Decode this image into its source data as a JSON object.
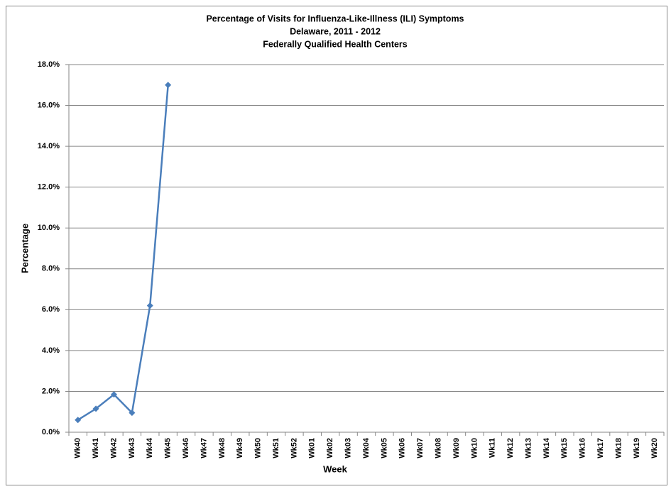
{
  "chart_data": {
    "type": "line",
    "title": [
      "Percentage of Visits for Influenza-Like-Illness (ILI) Symptoms",
      "Delaware, 2011 - 2012",
      "Federally Qualified Health Centers"
    ],
    "x_label": "Week",
    "y_label": "Percentage",
    "categories": [
      "Wk40",
      "Wk41",
      "Wk42",
      "Wk43",
      "Wk44",
      "Wk45",
      "Wk46",
      "Wk47",
      "Wk48",
      "Wk49",
      "Wk50",
      "Wk51",
      "Wk52",
      "Wk01",
      "Wk02",
      "Wk03",
      "Wk04",
      "Wk05",
      "Wk06",
      "Wk07",
      "Wk08",
      "Wk09",
      "Wk10",
      "Wk11",
      "Wk12",
      "Wk13",
      "Wk14",
      "Wk15",
      "Wk16",
      "Wk17",
      "Wk18",
      "Wk19",
      "Wk20"
    ],
    "series": [
      {
        "color": "#4a7ebb",
        "values": [
          0.6,
          1.15,
          1.85,
          0.95,
          6.2,
          17.0,
          null,
          null,
          null,
          null,
          null,
          null,
          null,
          null,
          null,
          null,
          null,
          null,
          null,
          null,
          null,
          null,
          null,
          null,
          null,
          null,
          null,
          null,
          null,
          null,
          null,
          null,
          null
        ]
      }
    ],
    "ylim": [
      0,
      18
    ],
    "yticks": [
      {
        "value": 0,
        "label": "0.0%"
      },
      {
        "value": 2,
        "label": "2.0%"
      },
      {
        "value": 4,
        "label": "4.0%"
      },
      {
        "value": 6,
        "label": "6.0%"
      },
      {
        "value": 8,
        "label": "8.0%"
      },
      {
        "value": 10,
        "label": "10.0%"
      },
      {
        "value": 12,
        "label": "12.0%"
      },
      {
        "value": 14,
        "label": "14.0%"
      },
      {
        "value": 16,
        "label": "16.0%"
      },
      {
        "value": 18,
        "label": "18.0%"
      }
    ],
    "grid": true
  }
}
